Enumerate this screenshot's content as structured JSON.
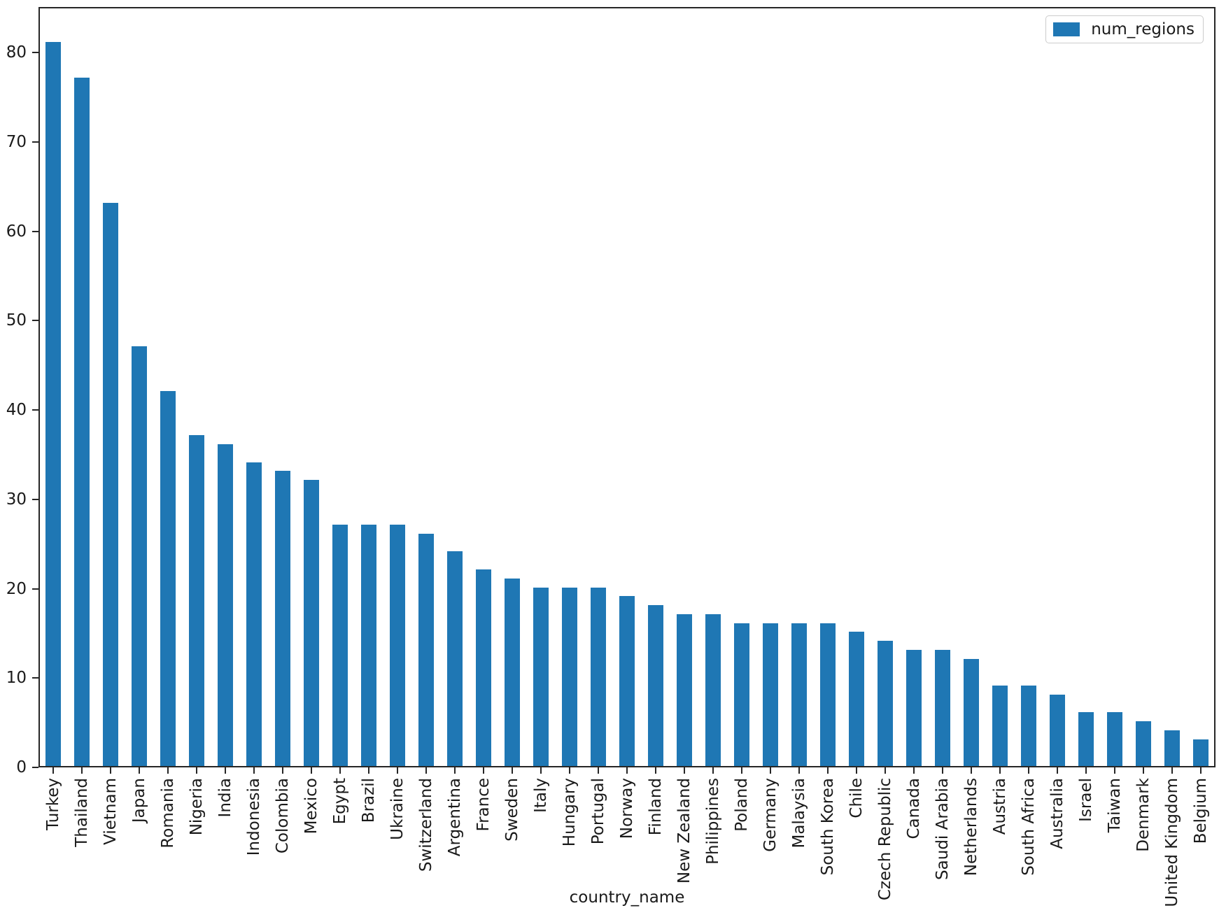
{
  "chart_data": {
    "type": "bar",
    "title": "",
    "xlabel": "country_name",
    "ylabel": "",
    "legend_entries": [
      "num_regions"
    ],
    "legend_position": "upper right",
    "grid": false,
    "ylim": [
      0,
      85.1
    ],
    "yticks": [
      0,
      10,
      20,
      30,
      40,
      50,
      60,
      70,
      80
    ],
    "bar_color": "#1f77b4",
    "axis_color": "#262626",
    "categories": [
      "Turkey",
      "Thailand",
      "Vietnam",
      "Japan",
      "Romania",
      "Nigeria",
      "India",
      "Indonesia",
      "Colombia",
      "Mexico",
      "Egypt",
      "Brazil",
      "Ukraine",
      "Switzerland",
      "Argentina",
      "France",
      "Sweden",
      "Italy",
      "Hungary",
      "Portugal",
      "Norway",
      "Finland",
      "New Zealand",
      "Philippines",
      "Poland",
      "Germany",
      "Malaysia",
      "South Korea",
      "Chile",
      "Czech Republic",
      "Canada",
      "Saudi Arabia",
      "Netherlands",
      "Austria",
      "South Africa",
      "Australia",
      "Israel",
      "Taiwan",
      "Denmark",
      "United Kingdom",
      "Belgium"
    ],
    "series": [
      {
        "name": "num_regions",
        "values": [
          81,
          77,
          63,
          47,
          42,
          37,
          36,
          34,
          33,
          32,
          27,
          27,
          27,
          26,
          24,
          22,
          21,
          20,
          20,
          20,
          19,
          18,
          17,
          17,
          16,
          16,
          16,
          16,
          15,
          14,
          13,
          13,
          12,
          9,
          9,
          8,
          6,
          6,
          5,
          4,
          3
        ]
      }
    ]
  }
}
